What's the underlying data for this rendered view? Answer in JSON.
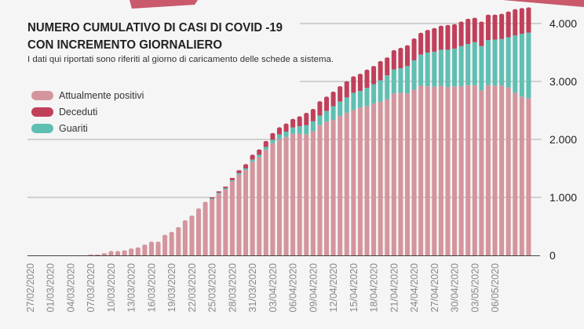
{
  "chart_data": {
    "type": "bar",
    "stacked": true,
    "title": "NUMERO CUMULATIVO DI CASI DI COVID -19",
    "title_line2": "CON INCREMENTO GIORNALIERO",
    "subtitle": "I dati qui riportati sono riferiti al giorno di caricamento delle schede a sistema.",
    "legend_position": "top-left",
    "grid": true,
    "ylim": [
      0,
      4300
    ],
    "y_ticks": [
      0,
      1000,
      2000,
      3000,
      4000
    ],
    "y_tick_labels": [
      "0",
      "1.000",
      "2.000",
      "3.000",
      "4.000"
    ],
    "x_tick_labels": [
      "27/02/2020",
      "01/03/2020",
      "04/03/2020",
      "07/03/2020",
      "10/03/2020",
      "13/03/2020",
      "16/03/2020",
      "19/03/2020",
      "22/03/2020",
      "25/03/2020",
      "28/03/2020",
      "31/03/2020",
      "03/04/2020",
      "06/04/2020",
      "09/04/2020",
      "12/04/2020",
      "15/04/2020",
      "18/04/2020",
      "21/04/2020",
      "24/04/2020",
      "27/04/2020",
      "30/04/2020",
      "03/05/2020",
      "06/05/2020"
    ],
    "categories": [
      "27/02/2020",
      "28/02/2020",
      "29/02/2020",
      "01/03/2020",
      "02/03/2020",
      "03/03/2020",
      "04/03/2020",
      "05/03/2020",
      "06/03/2020",
      "07/03/2020",
      "08/03/2020",
      "09/03/2020",
      "10/03/2020",
      "11/03/2020",
      "12/03/2020",
      "13/03/2020",
      "14/03/2020",
      "15/03/2020",
      "16/03/2020",
      "17/03/2020",
      "18/03/2020",
      "19/03/2020",
      "20/03/2020",
      "21/03/2020",
      "22/03/2020",
      "23/03/2020",
      "24/03/2020",
      "25/03/2020",
      "26/03/2020",
      "27/03/2020",
      "28/03/2020",
      "29/03/2020",
      "30/03/2020",
      "31/03/2020",
      "01/04/2020",
      "02/04/2020",
      "03/04/2020",
      "04/04/2020",
      "05/04/2020",
      "06/04/2020",
      "07/04/2020",
      "08/04/2020",
      "09/04/2020",
      "10/04/2020",
      "11/04/2020",
      "12/04/2020",
      "13/04/2020",
      "14/04/2020",
      "15/04/2020",
      "16/04/2020",
      "17/04/2020",
      "18/04/2020",
      "19/04/2020",
      "20/04/2020",
      "21/04/2020",
      "22/04/2020",
      "23/04/2020",
      "24/04/2020",
      "25/04/2020",
      "26/04/2020",
      "27/04/2020",
      "28/04/2020",
      "29/04/2020",
      "30/04/2020",
      "01/05/2020",
      "02/05/2020",
      "03/05/2020",
      "04/05/2020",
      "05/05/2020",
      "06/05/2020",
      "07/05/2020",
      "08/05/2020",
      "09/05/2020",
      "10/05/2020",
      "11/05/2020"
    ],
    "series": [
      {
        "name": "Attualmente positivi",
        "color": "#d4959d",
        "values": [
          0,
          0,
          0,
          0,
          0,
          0,
          0,
          0,
          0,
          14,
          14,
          36,
          55,
          55,
          68,
          100,
          118,
          168,
          218,
          218,
          336,
          386,
          468,
          586,
          668,
          791,
          905,
          965,
          1065,
          1136,
          1276,
          1393,
          1470,
          1618,
          1694,
          1820,
          1936,
          2006,
          2045,
          2096,
          2100,
          2090,
          2143,
          2246,
          2309,
          2336,
          2403,
          2461,
          2506,
          2550,
          2573,
          2617,
          2653,
          2694,
          2792,
          2805,
          2792,
          2859,
          2926,
          2917,
          2908,
          2926,
          2904,
          2917,
          2917,
          2935,
          2935,
          2846,
          2940,
          2931,
          2931,
          2895,
          2805,
          2738,
          2711
        ]
      },
      {
        "name": "Guariti",
        "color": "#5fbfb3",
        "values": [
          0,
          0,
          0,
          0,
          0,
          0,
          0,
          0,
          0,
          0,
          0,
          0,
          0,
          0,
          0,
          0,
          0,
          0,
          0,
          0,
          0,
          0,
          0,
          0,
          0,
          0,
          0,
          15,
          15,
          20,
          20,
          25,
          30,
          35,
          40,
          50,
          60,
          80,
          90,
          110,
          130,
          156,
          170,
          166,
          183,
          237,
          250,
          264,
          299,
          287,
          317,
          336,
          367,
          411,
          416,
          425,
          474,
          506,
          537,
          582,
          604,
          622,
          644,
          649,
          694,
          712,
          743,
          765,
          774,
          792,
          801,
          868,
          989,
          1083,
          1132
        ]
      },
      {
        "name": "Deceduti",
        "color": "#c0405a",
        "values": [
          0,
          0,
          0,
          0,
          0,
          0,
          0,
          0,
          0,
          0,
          0,
          0,
          0,
          0,
          0,
          0,
          0,
          0,
          0,
          0,
          0,
          0,
          0,
          0,
          0,
          0,
          0,
          20,
          25,
          30,
          40,
          50,
          55,
          65,
          75,
          85,
          95,
          105,
          120,
          130,
          150,
          193,
          193,
          228,
          228,
          232,
          246,
          259,
          264,
          277,
          296,
          295,
          313,
          291,
          313,
          331,
          340,
          358,
          358,
          371,
          390,
          394,
          407,
          403,
          402,
          416,
          402,
          402,
          420,
          411,
          416,
          425,
          434,
          425,
          416
        ]
      }
    ],
    "legend_order": [
      "Attualmente positivi",
      "Deceduti",
      "Guariti"
    ]
  },
  "colors": {
    "background": "#f5f5f5",
    "grid": "#c4c4c4",
    "accent": "#c0405a"
  }
}
